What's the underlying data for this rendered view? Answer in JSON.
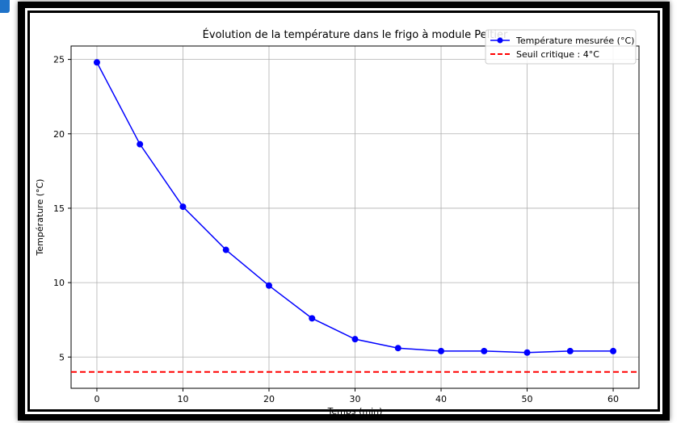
{
  "chart_data": {
    "type": "line",
    "title": "Évolution de la température dans le frigo à module Peltier",
    "xlabel": "Temps (min)",
    "ylabel": "Température (°C)",
    "xlim": [
      -3,
      63
    ],
    "ylim": [
      2.9,
      25.9
    ],
    "x_ticks": [
      0,
      10,
      20,
      30,
      40,
      50,
      60
    ],
    "y_ticks": [
      5,
      10,
      15,
      20,
      25
    ],
    "grid": true,
    "legend_position": "top-right",
    "series": [
      {
        "name": "Température mesurée (°C)",
        "color": "#0000ff",
        "style": "solid-line-with-circle-markers",
        "x": [
          0,
          5,
          10,
          15,
          20,
          25,
          30,
          35,
          40,
          45,
          50,
          55,
          60
        ],
        "y": [
          24.8,
          19.3,
          15.1,
          12.2,
          9.8,
          7.6,
          6.2,
          5.6,
          5.4,
          5.4,
          5.3,
          5.4,
          5.4
        ]
      },
      {
        "name": "Seuil critique : 4°C",
        "color": "#ff0000",
        "style": "dashed-horizontal-line",
        "y": 4
      }
    ]
  }
}
